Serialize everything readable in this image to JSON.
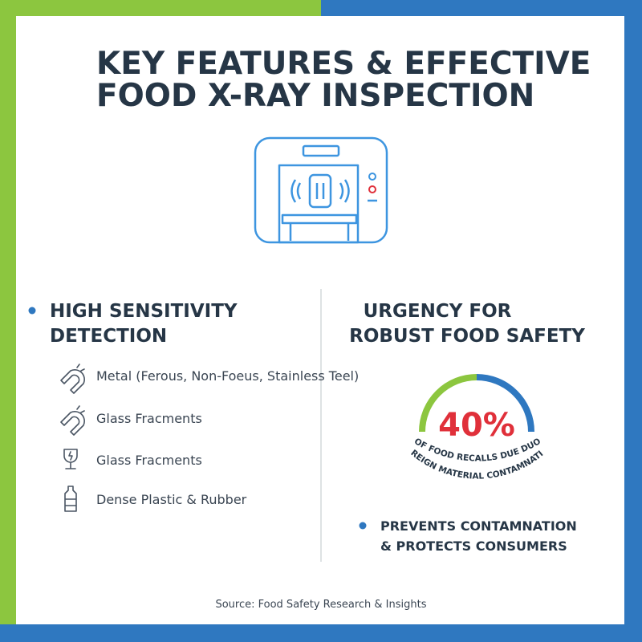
{
  "header": {
    "title": [
      "KEY FEATURES & EFFECTIVE",
      "FOOD X-RAY INSPECTION"
    ]
  },
  "left": {
    "heading": [
      "HIGH SENSITIVITY",
      "DETECTION"
    ],
    "items": [
      "Metal (Ferous, Non-Foeus, Stainless Teel)",
      "Glass Fracments",
      "Glass Fracments",
      "Dense Plastic & Rubber"
    ]
  },
  "right": {
    "heading": [
      "URGENCY FOR",
      "ROBUST FOOD SAFETY"
    ],
    "stat": {
      "value": "40%",
      "caption": [
        "OF FOOD RECALLS DUE DUO",
        "FOREIGN MATERIAL CONTAMNATION"
      ]
    },
    "bullet": [
      "PREVENTS CONTAMNATION",
      "& PROTECTS CONSUMERS"
    ]
  },
  "footer": {
    "source": "Source: Food Safety Research & Insights"
  }
}
